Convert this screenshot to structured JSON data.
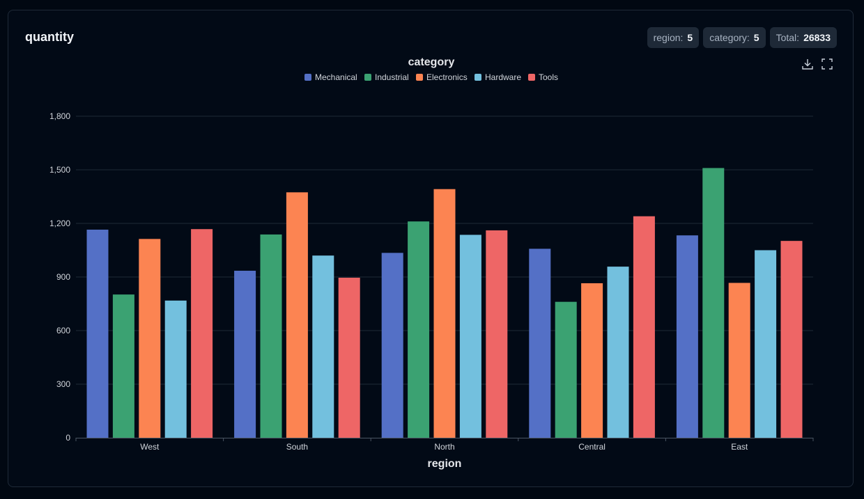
{
  "card": {
    "title": "quantity",
    "badges": [
      {
        "label": "region:",
        "value": "5"
      },
      {
        "label": "category:",
        "value": "5"
      },
      {
        "label": "Total:",
        "value": "26833"
      }
    ]
  },
  "icons": {
    "download": "download-icon",
    "fullscreen": "fullscreen-icon"
  },
  "colors": {
    "background": "#020a16",
    "grid": "#1f2937",
    "axis": "#4b5563",
    "text": "#d1d5db"
  },
  "chart_data": {
    "type": "bar",
    "title": "",
    "legend_title": "category",
    "legend_position": "top-center",
    "xlabel": "region",
    "ylabel": "",
    "categories": [
      "West",
      "South",
      "North",
      "Central",
      "East"
    ],
    "ylim": [
      0,
      1800
    ],
    "yticks": [
      "0",
      "300",
      "600",
      "900",
      "1,200",
      "1,500",
      "1,800"
    ],
    "ytick_values": [
      0,
      300,
      600,
      900,
      1200,
      1500,
      1800
    ],
    "grid": true,
    "series": [
      {
        "name": "Mechanical",
        "color": "#5470c6",
        "values": [
          1165,
          935,
          1035,
          1058,
          1133
        ]
      },
      {
        "name": "Industrial",
        "color": "#3ba272",
        "values": [
          802,
          1138,
          1211,
          761,
          1510
        ]
      },
      {
        "name": "Electronics",
        "color": "#fc8452",
        "values": [
          1113,
          1374,
          1392,
          865,
          867
        ]
      },
      {
        "name": "Hardware",
        "color": "#73c0de",
        "values": [
          768,
          1020,
          1136,
          958,
          1050
        ]
      },
      {
        "name": "Tools",
        "color": "#ee6666",
        "values": [
          1168,
          896,
          1161,
          1240,
          1102
        ]
      }
    ]
  }
}
